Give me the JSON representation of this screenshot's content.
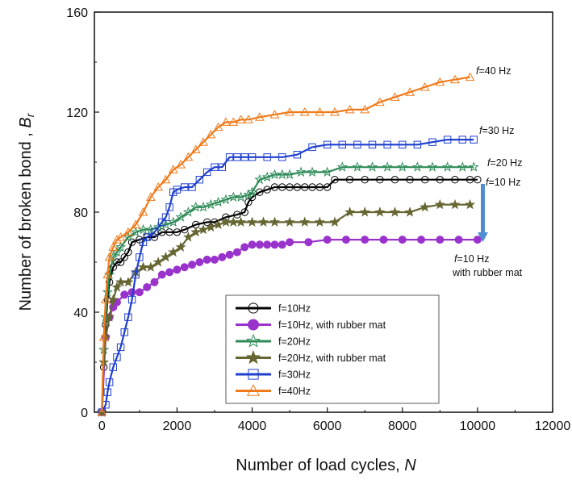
{
  "chart_data": {
    "type": "line",
    "title": "",
    "xlabel": "Number of load cycles, ",
    "xlabel_var": "N",
    "ylabel": "Number of broken bond , ",
    "ylabel_var": "B",
    "ylabel_sub": "r",
    "xlim": [
      -200,
      12000
    ],
    "ylim": [
      0,
      160
    ],
    "xticks": [
      "0",
      "2000",
      "4000",
      "6000",
      "8000",
      "10000",
      "12000"
    ],
    "yticks": [
      "0",
      "40",
      "80",
      "120",
      "160"
    ],
    "grid": false,
    "legend_position": "bottom-center",
    "annotations": {
      "f40": {
        "italic": "f",
        "rest": "=40 Hz"
      },
      "f30": {
        "italic": "f",
        "rest": "=30 Hz"
      },
      "f20": {
        "italic": "f",
        "rest": "=20 Hz"
      },
      "f10": {
        "italic": "f",
        "rest": "=10 Hz"
      },
      "f10_rubber_line1": {
        "italic": "f",
        "rest": "=10 Hz"
      },
      "f10_rubber_line2": "with rubber mat"
    },
    "arrow_color": "#4f8fd0",
    "series": [
      {
        "name": "f=10Hz",
        "color": "#000000",
        "marker": "circle-open",
        "points": [
          [
            0,
            0
          ],
          [
            50,
            18
          ],
          [
            100,
            35
          ],
          [
            150,
            45
          ],
          [
            200,
            52
          ],
          [
            300,
            58
          ],
          [
            400,
            60
          ],
          [
            500,
            60
          ],
          [
            600,
            62
          ],
          [
            700,
            64
          ],
          [
            800,
            68
          ],
          [
            1000,
            69
          ],
          [
            1200,
            70
          ],
          [
            1400,
            70
          ],
          [
            1600,
            72
          ],
          [
            1800,
            72
          ],
          [
            2000,
            72
          ],
          [
            2200,
            73
          ],
          [
            2500,
            75
          ],
          [
            2800,
            76
          ],
          [
            3000,
            76
          ],
          [
            3300,
            78
          ],
          [
            3600,
            79
          ],
          [
            3800,
            80
          ],
          [
            3900,
            84
          ],
          [
            4000,
            86
          ],
          [
            4200,
            88
          ],
          [
            4400,
            89
          ],
          [
            4600,
            90
          ],
          [
            4800,
            90
          ],
          [
            5000,
            90
          ],
          [
            5200,
            90
          ],
          [
            5400,
            90
          ],
          [
            5600,
            90
          ],
          [
            5800,
            90
          ],
          [
            6000,
            90
          ],
          [
            6200,
            93
          ],
          [
            6600,
            93
          ],
          [
            7000,
            93
          ],
          [
            7400,
            93
          ],
          [
            7800,
            93
          ],
          [
            8200,
            93
          ],
          [
            8600,
            93
          ],
          [
            9000,
            93
          ],
          [
            9400,
            93
          ],
          [
            9800,
            93
          ],
          [
            10000,
            93
          ]
        ]
      },
      {
        "name": "f=10Hz, with rubber mat",
        "color": "#9933cc",
        "marker": "circle-filled",
        "points": [
          [
            0,
            0
          ],
          [
            100,
            30
          ],
          [
            200,
            38
          ],
          [
            300,
            42
          ],
          [
            400,
            44
          ],
          [
            600,
            47
          ],
          [
            800,
            48
          ],
          [
            1000,
            48
          ],
          [
            1200,
            50
          ],
          [
            1400,
            52
          ],
          [
            1600,
            55
          ],
          [
            1800,
            56
          ],
          [
            2000,
            57
          ],
          [
            2200,
            58
          ],
          [
            2400,
            59
          ],
          [
            2600,
            60
          ],
          [
            2800,
            61
          ],
          [
            3000,
            61
          ],
          [
            3200,
            62
          ],
          [
            3400,
            63
          ],
          [
            3600,
            64
          ],
          [
            3800,
            66
          ],
          [
            4000,
            67
          ],
          [
            4200,
            67
          ],
          [
            4400,
            67
          ],
          [
            4600,
            67
          ],
          [
            4800,
            67
          ],
          [
            5000,
            68
          ],
          [
            5500,
            68
          ],
          [
            6000,
            69
          ],
          [
            6500,
            69
          ],
          [
            7000,
            69
          ],
          [
            7500,
            69
          ],
          [
            8000,
            69
          ],
          [
            8500,
            69
          ],
          [
            9000,
            69
          ],
          [
            9500,
            69
          ],
          [
            10000,
            69
          ]
        ]
      },
      {
        "name": "f=20Hz",
        "color": "#2e8b57",
        "marker": "star-open",
        "points": [
          [
            0,
            0
          ],
          [
            50,
            25
          ],
          [
            100,
            38
          ],
          [
            150,
            48
          ],
          [
            200,
            55
          ],
          [
            300,
            62
          ],
          [
            400,
            64
          ],
          [
            500,
            66
          ],
          [
            700,
            70
          ],
          [
            900,
            72
          ],
          [
            1100,
            73
          ],
          [
            1300,
            73
          ],
          [
            1500,
            74
          ],
          [
            1700,
            75
          ],
          [
            1900,
            76
          ],
          [
            2100,
            78
          ],
          [
            2300,
            80
          ],
          [
            2500,
            82
          ],
          [
            2700,
            82
          ],
          [
            2900,
            83
          ],
          [
            3100,
            84
          ],
          [
            3300,
            85
          ],
          [
            3500,
            86
          ],
          [
            3700,
            86
          ],
          [
            3900,
            87
          ],
          [
            4000,
            88
          ],
          [
            4200,
            93
          ],
          [
            4400,
            94
          ],
          [
            4600,
            95
          ],
          [
            4800,
            95
          ],
          [
            5000,
            95
          ],
          [
            5300,
            96
          ],
          [
            5600,
            96
          ],
          [
            6000,
            96
          ],
          [
            6400,
            98
          ],
          [
            6800,
            98
          ],
          [
            7200,
            98
          ],
          [
            7600,
            98
          ],
          [
            8000,
            98
          ],
          [
            8400,
            98
          ],
          [
            8800,
            98
          ],
          [
            9200,
            98
          ],
          [
            9600,
            98
          ],
          [
            9900,
            98
          ]
        ]
      },
      {
        "name": "f=20Hz, with rubber mat",
        "color": "#666633",
        "marker": "star-filled",
        "points": [
          [
            0,
            0
          ],
          [
            50,
            20
          ],
          [
            100,
            30
          ],
          [
            200,
            38
          ],
          [
            300,
            45
          ],
          [
            400,
            50
          ],
          [
            500,
            52
          ],
          [
            700,
            52
          ],
          [
            900,
            56
          ],
          [
            1100,
            58
          ],
          [
            1300,
            58
          ],
          [
            1500,
            60
          ],
          [
            1700,
            62
          ],
          [
            1900,
            64
          ],
          [
            2100,
            66
          ],
          [
            2300,
            70
          ],
          [
            2500,
            72
          ],
          [
            2700,
            73
          ],
          [
            2900,
            74
          ],
          [
            3100,
            75
          ],
          [
            3300,
            76
          ],
          [
            3500,
            76
          ],
          [
            3700,
            76
          ],
          [
            4000,
            76
          ],
          [
            4300,
            76
          ],
          [
            4600,
            76
          ],
          [
            5000,
            76
          ],
          [
            5400,
            76
          ],
          [
            5800,
            76
          ],
          [
            6200,
            76
          ],
          [
            6600,
            80
          ],
          [
            7000,
            80
          ],
          [
            7400,
            80
          ],
          [
            7800,
            80
          ],
          [
            8200,
            80
          ],
          [
            8600,
            82
          ],
          [
            9000,
            83
          ],
          [
            9400,
            83
          ],
          [
            9800,
            83
          ]
        ]
      },
      {
        "name": "f=30Hz",
        "color": "#1f3fcf",
        "marker": "square-open",
        "points": [
          [
            0,
            0
          ],
          [
            100,
            3
          ],
          [
            150,
            8
          ],
          [
            200,
            12
          ],
          [
            300,
            18
          ],
          [
            400,
            22
          ],
          [
            500,
            26
          ],
          [
            600,
            32
          ],
          [
            700,
            38
          ],
          [
            800,
            45
          ],
          [
            900,
            55
          ],
          [
            1000,
            62
          ],
          [
            1100,
            68
          ],
          [
            1200,
            70
          ],
          [
            1400,
            72
          ],
          [
            1600,
            76
          ],
          [
            1700,
            78
          ],
          [
            1800,
            82
          ],
          [
            1900,
            88
          ],
          [
            2000,
            89
          ],
          [
            2200,
            90
          ],
          [
            2400,
            90
          ],
          [
            2600,
            93
          ],
          [
            2800,
            96
          ],
          [
            3000,
            98
          ],
          [
            3200,
            98
          ],
          [
            3400,
            102
          ],
          [
            3600,
            102
          ],
          [
            3800,
            102
          ],
          [
            4000,
            102
          ],
          [
            4400,
            102
          ],
          [
            4800,
            102
          ],
          [
            5200,
            103
          ],
          [
            5600,
            106
          ],
          [
            6000,
            107
          ],
          [
            6400,
            107
          ],
          [
            6800,
            107
          ],
          [
            7200,
            107
          ],
          [
            7600,
            107
          ],
          [
            8000,
            107
          ],
          [
            8400,
            107
          ],
          [
            8800,
            108
          ],
          [
            9200,
            109
          ],
          [
            9600,
            109
          ],
          [
            9900,
            109
          ]
        ]
      },
      {
        "name": "f=40Hz",
        "color": "#f07a1a",
        "marker": "triangle-open",
        "points": [
          [
            0,
            0
          ],
          [
            50,
            30
          ],
          [
            100,
            45
          ],
          [
            150,
            55
          ],
          [
            200,
            62
          ],
          [
            300,
            66
          ],
          [
            400,
            69
          ],
          [
            500,
            70
          ],
          [
            700,
            72
          ],
          [
            900,
            75
          ],
          [
            1100,
            80
          ],
          [
            1300,
            86
          ],
          [
            1500,
            90
          ],
          [
            1700,
            93
          ],
          [
            1900,
            97
          ],
          [
            2100,
            99
          ],
          [
            2300,
            102
          ],
          [
            2500,
            105
          ],
          [
            2700,
            108
          ],
          [
            2900,
            111
          ],
          [
            3100,
            114
          ],
          [
            3300,
            116
          ],
          [
            3500,
            116
          ],
          [
            3700,
            117
          ],
          [
            3900,
            117
          ],
          [
            4200,
            118
          ],
          [
            4600,
            119
          ],
          [
            5000,
            120
          ],
          [
            5400,
            120
          ],
          [
            5800,
            120
          ],
          [
            6200,
            120
          ],
          [
            6600,
            121
          ],
          [
            7000,
            121
          ],
          [
            7400,
            124
          ],
          [
            7800,
            126
          ],
          [
            8200,
            128
          ],
          [
            8600,
            130
          ],
          [
            9000,
            132
          ],
          [
            9400,
            133
          ],
          [
            9800,
            134
          ]
        ]
      }
    ]
  }
}
